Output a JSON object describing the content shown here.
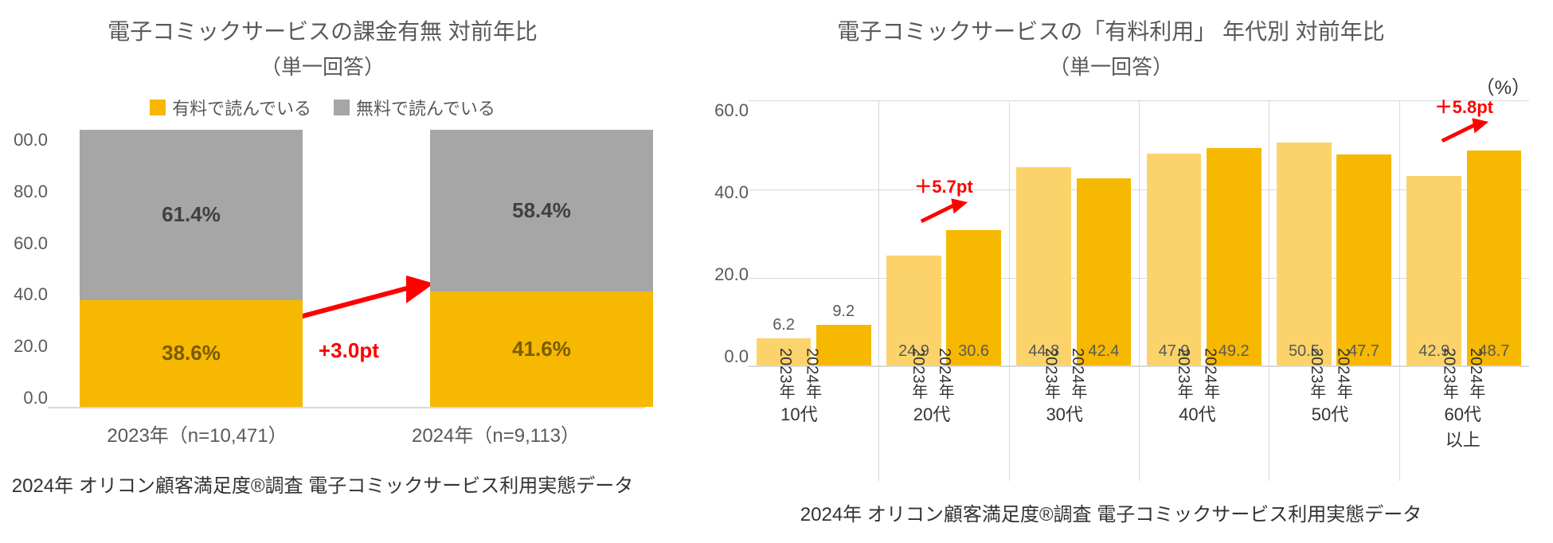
{
  "colors": {
    "orange": "#f6b800",
    "orange_light": "#fbd36a",
    "gray_bar": "#a6a6a6",
    "text_gray": "#595959",
    "grid": "#d9d9d9",
    "red": "#ff0000",
    "background": "#ffffff"
  },
  "left": {
    "title": "電子コミックサービスの課金有無 対前年比",
    "subtitle": "（単一回答）",
    "legend": {
      "paid": "有料で読んでいる",
      "free": "無料で読んでいる"
    },
    "type": "stacked_bar_percent",
    "ylim": [
      0,
      100
    ],
    "ytick_step": 20,
    "yticks": [
      "00.0",
      "80.0",
      "60.0",
      "40.0",
      "20.0",
      "0.0"
    ],
    "bars": [
      {
        "x_label": "2023年（n=10,471）",
        "paid": 38.6,
        "free": 61.4
      },
      {
        "x_label": "2024年（n=9,113）",
        "paid": 41.6,
        "free": 58.4
      }
    ],
    "annotation": "+3.0pt",
    "source": "2024年 オリコン顧客満足度®調査 電子コミックサービス利用実態データ"
  },
  "right": {
    "title": "電子コミックサービスの「有料利用」 年代別 対前年比",
    "subtitle": "（単一回答）",
    "unit": "（%）",
    "type": "grouped_bar",
    "ylim": [
      0,
      60
    ],
    "ytick_step": 20,
    "yticks": [
      "60.0",
      "40.0",
      "20.0",
      "0.0"
    ],
    "year_labels": [
      "2023年",
      "2024年"
    ],
    "groups": [
      {
        "age": "10代",
        "v2023": 6.2,
        "v2024": 9.2
      },
      {
        "age": "20代",
        "v2023": 24.9,
        "v2024": 30.6,
        "annotation": "＋5.7pt"
      },
      {
        "age": "30代",
        "v2023": 44.8,
        "v2024": 42.4
      },
      {
        "age": "40代",
        "v2023": 47.9,
        "v2024": 49.2
      },
      {
        "age": "50代",
        "v2023": 50.5,
        "v2024": 47.7
      },
      {
        "age": "60代 以上",
        "v2023": 42.9,
        "v2024": 48.7,
        "annotation": "＋5.8pt"
      }
    ],
    "source": "2024年 オリコン顧客満足度®調査 電子コミックサービス利用実態データ"
  }
}
